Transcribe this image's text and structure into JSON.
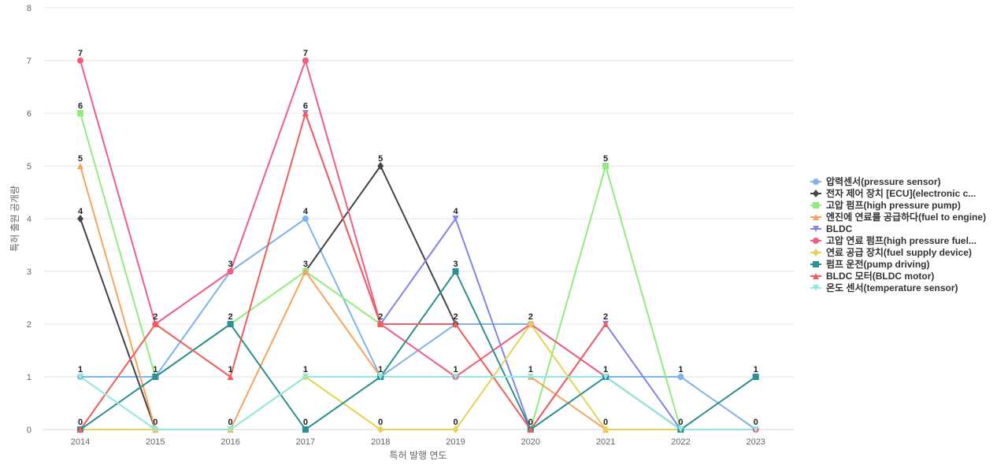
{
  "chart_data": {
    "type": "line",
    "title": "",
    "xlabel": "특허 발행 연도",
    "ylabel": "특허 출원 공개량",
    "categories": [
      "2014",
      "2015",
      "2016",
      "2017",
      "2018",
      "2019",
      "2020",
      "2021",
      "2022",
      "2023"
    ],
    "ylim": [
      0,
      8
    ],
    "yticks": [
      0,
      1,
      2,
      3,
      4,
      5,
      6,
      7,
      8
    ],
    "grid": true,
    "legend_position": "right",
    "series": [
      {
        "name": "압력센서(pressure sensor)",
        "color": "#7cb5ec",
        "marker": "circle",
        "values": [
          1,
          1,
          3,
          4,
          1,
          2,
          2,
          1,
          1,
          0
        ]
      },
      {
        "name": "전자 제어 장치 [ECU](electronic c...",
        "color": "#434348",
        "marker": "diamond",
        "values": [
          4,
          0,
          null,
          3,
          5,
          2,
          null,
          null,
          null,
          null
        ]
      },
      {
        "name": "고압 펌프(high pressure pump)",
        "color": "#90ed7d",
        "marker": "square",
        "values": [
          6,
          1,
          2,
          3,
          2,
          null,
          0,
          5,
          0,
          null
        ]
      },
      {
        "name": "엔진에 연료를 공급하다(fuel to engine)",
        "color": "#f7a35c",
        "marker": "triangle",
        "values": [
          5,
          0,
          0,
          3,
          1,
          null,
          1,
          0,
          null,
          null
        ]
      },
      {
        "name": "BLDC",
        "color": "#8085e9",
        "marker": "triangle-down",
        "values": [
          null,
          null,
          null,
          6,
          2,
          4,
          0,
          2,
          0,
          null
        ]
      },
      {
        "name": "고압 연료 펌프(high pressure fuel...",
        "color": "#f15c80",
        "marker": "circle",
        "values": [
          7,
          2,
          3,
          7,
          2,
          1,
          2,
          1,
          0,
          0
        ]
      },
      {
        "name": "연료 공급 장치(fuel supply device)",
        "color": "#e4d354",
        "marker": "diamond",
        "values": [
          0,
          0,
          0,
          1,
          0,
          0,
          2,
          0,
          0,
          null
        ]
      },
      {
        "name": "펌프 운전(pump driving)",
        "color": "#2b908f",
        "marker": "square",
        "values": [
          0,
          1,
          2,
          0,
          1,
          3,
          0,
          1,
          0,
          1
        ]
      },
      {
        "name": "BLDC 모터(BLDC motor)",
        "color": "#f45b5b",
        "marker": "triangle",
        "values": [
          0,
          2,
          1,
          6,
          2,
          2,
          0,
          2,
          null,
          null
        ]
      },
      {
        "name": "온도 센서(temperature sensor)",
        "color": "#91e8e1",
        "marker": "triangle-down",
        "values": [
          1,
          0,
          0,
          1,
          1,
          1,
          1,
          1,
          0,
          0
        ]
      }
    ],
    "data_labels": [
      {
        "x": "2014",
        "text": "7",
        "y": 7
      },
      {
        "x": "2014",
        "text": "6",
        "y": 6
      },
      {
        "x": "2014",
        "text": "5",
        "y": 5
      },
      {
        "x": "2014",
        "text": "4",
        "y": 4
      },
      {
        "x": "2014",
        "text": "1",
        "y": 1
      },
      {
        "x": "2014",
        "text": "0",
        "y": 0
      },
      {
        "x": "2015",
        "text": "2",
        "y": 2
      },
      {
        "x": "2015",
        "text": "1",
        "y": 1
      },
      {
        "x": "2015",
        "text": "0",
        "y": 0
      },
      {
        "x": "2016",
        "text": "3",
        "y": 3
      },
      {
        "x": "2016",
        "text": "2",
        "y": 2
      },
      {
        "x": "2016",
        "text": "1",
        "y": 1
      },
      {
        "x": "2016",
        "text": "0",
        "y": 0
      },
      {
        "x": "2017",
        "text": "7",
        "y": 7
      },
      {
        "x": "2017",
        "text": "6",
        "y": 6
      },
      {
        "x": "2017",
        "text": "4",
        "y": 4
      },
      {
        "x": "2017",
        "text": "3",
        "y": 3
      },
      {
        "x": "2017",
        "text": "1",
        "y": 1
      },
      {
        "x": "2017",
        "text": "0",
        "y": 0
      },
      {
        "x": "2018",
        "text": "5",
        "y": 5
      },
      {
        "x": "2018",
        "text": "2",
        "y": 2
      },
      {
        "x": "2018",
        "text": "1",
        "y": 1
      },
      {
        "x": "2018",
        "text": "0",
        "y": 0
      },
      {
        "x": "2019",
        "text": "4",
        "y": 4
      },
      {
        "x": "2019",
        "text": "3",
        "y": 3
      },
      {
        "x": "2019",
        "text": "2",
        "y": 2
      },
      {
        "x": "2019",
        "text": "1",
        "y": 1
      },
      {
        "x": "2019",
        "text": "0",
        "y": 0
      },
      {
        "x": "2020",
        "text": "2",
        "y": 2
      },
      {
        "x": "2020",
        "text": "1",
        "y": 1
      },
      {
        "x": "2020",
        "text": "0",
        "y": 0
      },
      {
        "x": "2021",
        "text": "5",
        "y": 5
      },
      {
        "x": "2021",
        "text": "2",
        "y": 2
      },
      {
        "x": "2021",
        "text": "1",
        "y": 1
      },
      {
        "x": "2021",
        "text": "0",
        "y": 0
      },
      {
        "x": "2022",
        "text": "1",
        "y": 1
      },
      {
        "x": "2022",
        "text": "0",
        "y": 0
      },
      {
        "x": "2023",
        "text": "1",
        "y": 1
      },
      {
        "x": "2023",
        "text": "0",
        "y": 0
      }
    ]
  }
}
